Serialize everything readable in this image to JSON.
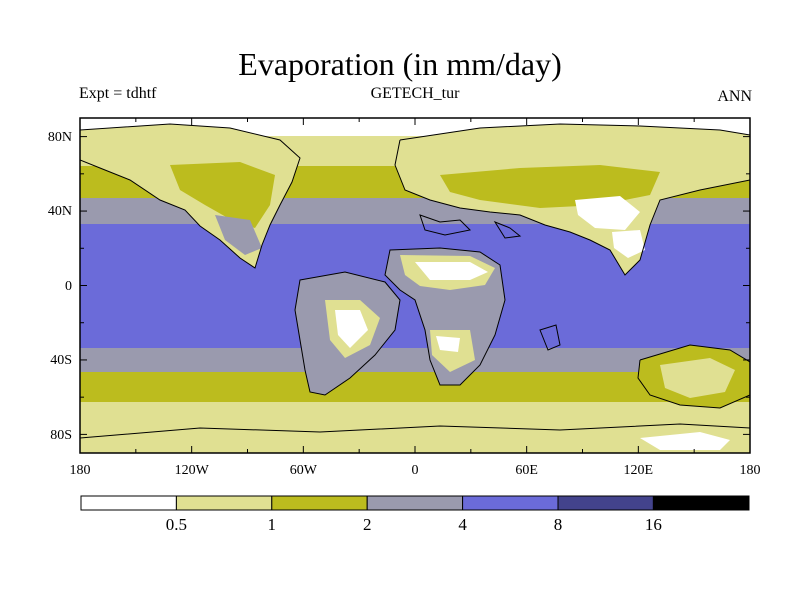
{
  "title": "Evaporation (in mm/day)",
  "experiment": "Expt = tdhtf",
  "subtitle": "GETECH_tur",
  "season": "ANN",
  "axes": {
    "x_ticks": [
      "180",
      "120W",
      "60W",
      "0",
      "60E",
      "120E",
      "180"
    ],
    "y_ticks": [
      "80N",
      "40N",
      "0",
      "40S",
      "80S"
    ]
  },
  "colorbar": {
    "boundaries": [
      "0.5",
      "1",
      "2",
      "4",
      "8",
      "16"
    ],
    "colors": [
      "#ffffff",
      "#e0e092",
      "#bcbc1e",
      "#9a9aae",
      "#6b6bd9",
      "#43438c",
      "#000000"
    ]
  },
  "chart_data": {
    "type": "heatmap",
    "title": "Evaporation (in mm/day)",
    "variable": "Evaporation",
    "units": "mm/day",
    "projection": "cylindrical equidistant",
    "lon_range": [
      -180,
      180
    ],
    "lat_range": [
      -90,
      90
    ],
    "levels": [
      0.5,
      1,
      2,
      4,
      8,
      16
    ],
    "zonal_bands": [
      {
        "lat_range": [
          75,
          90
        ],
        "value_range": "< 0.5"
      },
      {
        "lat_range": [
          62,
          75
        ],
        "value_range": "0.5-1"
      },
      {
        "lat_range": [
          48,
          62
        ],
        "value_range": "1-2"
      },
      {
        "lat_range": [
          35,
          48
        ],
        "value_range": "2-4"
      },
      {
        "lat_range": [
          -35,
          35
        ],
        "value_range": "4-8"
      },
      {
        "lat_range": [
          -48,
          -35
        ],
        "value_range": "2-4"
      },
      {
        "lat_range": [
          -62,
          -48
        ],
        "value_range": "1-2"
      },
      {
        "lat_range": [
          -90,
          -62
        ],
        "value_range": "0.5-1"
      }
    ]
  }
}
